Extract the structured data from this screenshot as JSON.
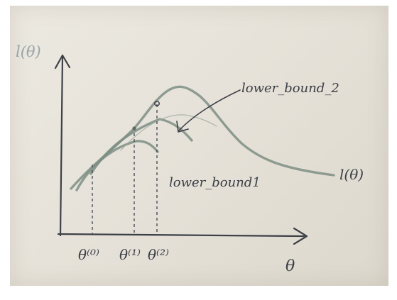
{
  "diagram": {
    "y_axis_label": "l(θ)",
    "x_axis_label": "θ",
    "curve_label": "l(θ)",
    "lower_bound_2_label": "lower_bound_2",
    "lower_bound_1_label": "lower_bound1",
    "theta_labels": [
      "θ⁽⁰⁾",
      "θ⁽¹⁾",
      "θ⁽²⁾"
    ]
  }
}
